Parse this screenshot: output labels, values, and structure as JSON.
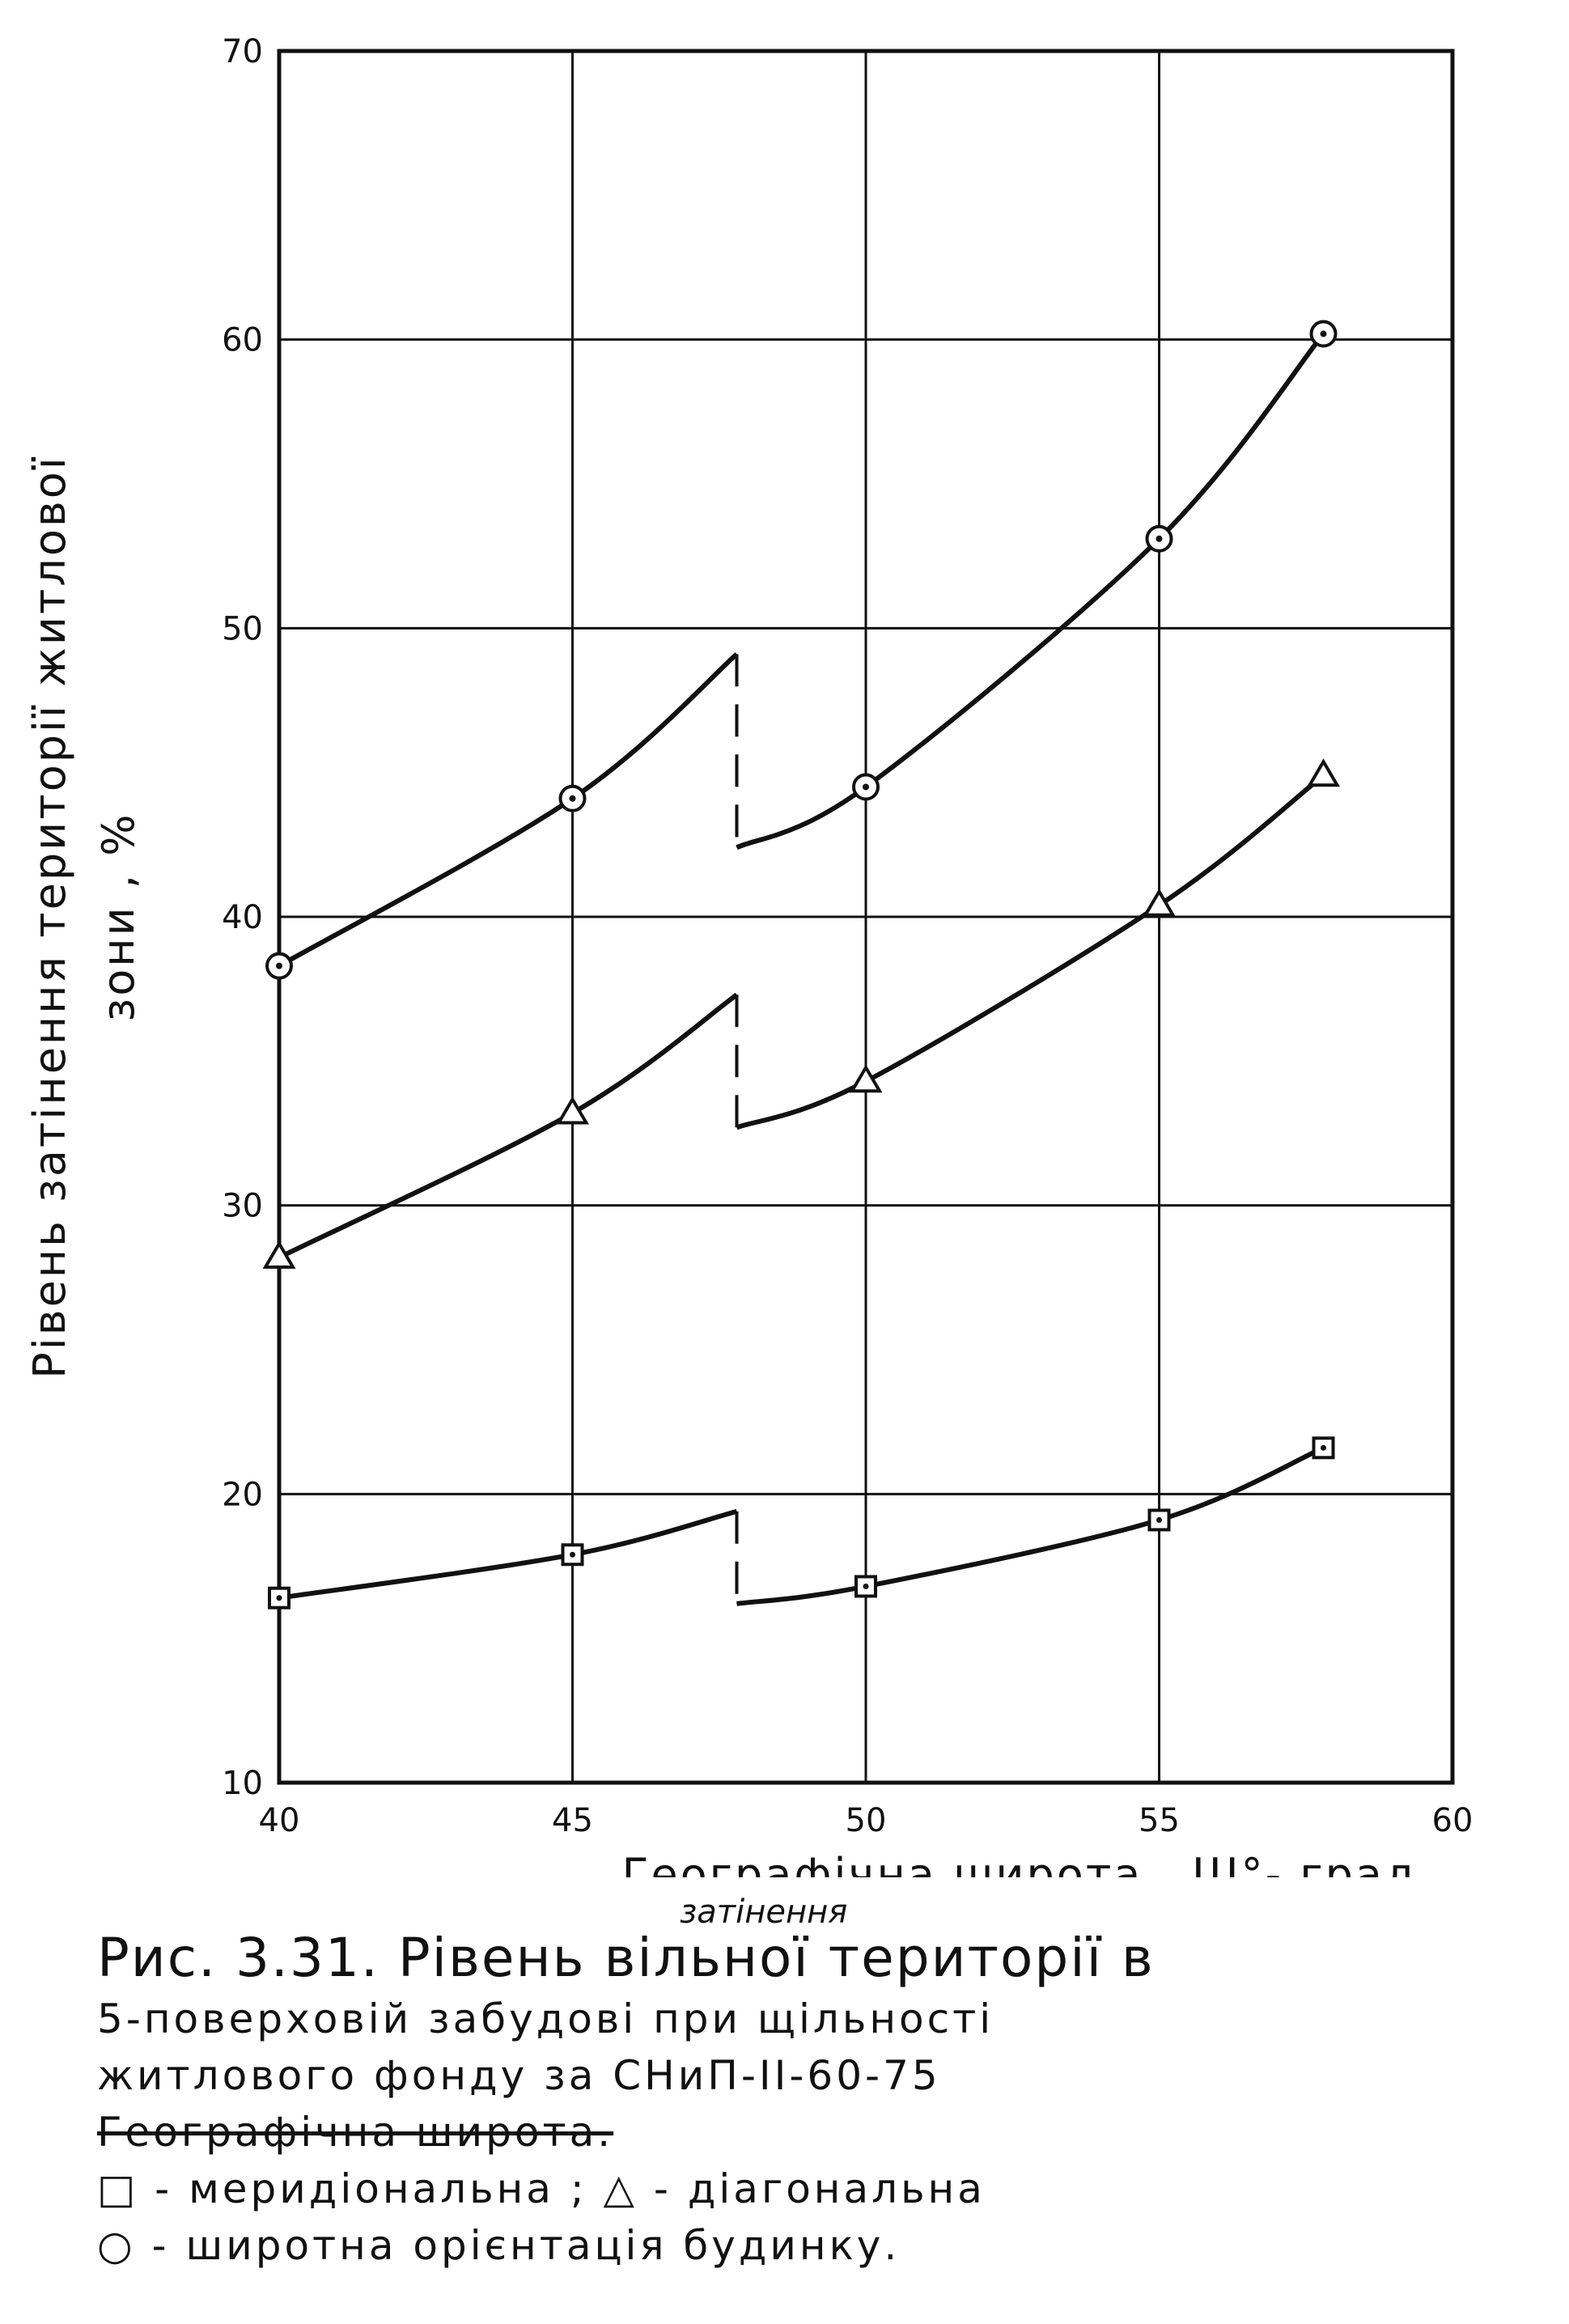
{
  "chart_data": {
    "type": "line",
    "xlabel": "Географічна широта , Ш°- град.",
    "ylabel_line1": "Рівень затінення території житлової",
    "ylabel_line2": "зони , %",
    "xlim": [
      40,
      60
    ],
    "ylim": [
      10,
      70
    ],
    "x_ticks": [
      "40",
      "45",
      "50",
      "55",
      "60"
    ],
    "y_ticks": [
      "10",
      "20",
      "30",
      "40",
      "50",
      "60",
      "70"
    ],
    "grid": true,
    "break_x": 47.8,
    "series": [
      {
        "marker": "circle",
        "segment1": [
          [
            40,
            38.3
          ],
          [
            45,
            44.1
          ],
          [
            47.8,
            49.1
          ]
        ],
        "gap": [
          [
            47.8,
            49.1
          ],
          [
            47.8,
            42.4
          ]
        ],
        "segment2": [
          [
            47.8,
            42.4
          ],
          [
            50,
            44.5
          ],
          [
            55,
            53.1
          ],
          [
            57.8,
            60.2
          ]
        ],
        "points": [
          [
            40,
            38.3
          ],
          [
            45,
            44.1
          ],
          [
            50,
            44.5
          ],
          [
            55,
            53.1
          ],
          [
            57.8,
            60.2
          ]
        ]
      },
      {
        "marker": "triangle",
        "segment1": [
          [
            40,
            28.2
          ],
          [
            45,
            33.2
          ],
          [
            47.8,
            37.3
          ]
        ],
        "gap": [
          [
            47.8,
            37.3
          ],
          [
            47.8,
            32.7
          ]
        ],
        "segment2": [
          [
            47.8,
            32.7
          ],
          [
            50,
            34.3
          ],
          [
            55,
            40.4
          ],
          [
            57.8,
            44.9
          ]
        ],
        "points": [
          [
            40,
            28.2
          ],
          [
            45,
            33.2
          ],
          [
            50,
            34.3
          ],
          [
            55,
            40.4
          ],
          [
            57.8,
            44.9
          ]
        ]
      },
      {
        "marker": "square",
        "segment1": [
          [
            40,
            16.4
          ],
          [
            45,
            17.9
          ],
          [
            47.8,
            19.4
          ]
        ],
        "gap": [
          [
            47.8,
            19.4
          ],
          [
            47.8,
            16.2
          ]
        ],
        "segment2": [
          [
            47.8,
            16.2
          ],
          [
            50,
            16.8
          ],
          [
            55,
            19.1
          ],
          [
            57.8,
            21.6
          ]
        ],
        "points": [
          [
            40,
            16.4
          ],
          [
            45,
            17.9
          ],
          [
            50,
            16.8
          ],
          [
            55,
            19.1
          ],
          [
            57.8,
            21.6
          ]
        ]
      }
    ]
  },
  "caption": {
    "insert_note": "затінення",
    "line1": "Рис. 3.31. Рівень вільної території в",
    "line2": "5-поверховій забудові при щільності",
    "line3": "житлового фонду за СНиП-ІІ-60-75",
    "line4_struck": "Географічна широта.",
    "legend_line1": "□ - меридіональна ; △ - діагональна",
    "legend_line2": "○ - широтна орієнтація будинку."
  }
}
